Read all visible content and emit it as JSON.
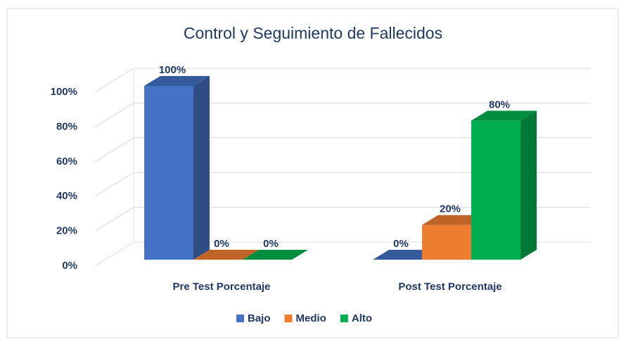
{
  "chart_data": {
    "type": "bar3d",
    "title": "Control y Seguimiento de Fallecidos",
    "categories": [
      "Pre Test Porcentaje",
      "Post Test Porcentaje"
    ],
    "series": [
      {
        "name": "Bajo",
        "color": "#4472c4",
        "values": [
          100,
          0
        ],
        "value_labels": [
          "100%",
          "0%"
        ]
      },
      {
        "name": "Medio",
        "color": "#ed7d31",
        "values": [
          0,
          20
        ],
        "value_labels": [
          "0%",
          "20%"
        ]
      },
      {
        "name": "Alto",
        "color": "#00b050",
        "values": [
          0,
          80
        ],
        "value_labels": [
          "0%",
          "80%"
        ]
      }
    ],
    "ylim": [
      0,
      100
    ],
    "yticks": [
      {
        "value": 0,
        "label": "0%"
      },
      {
        "value": 20,
        "label": "20%"
      },
      {
        "value": 40,
        "label": "40%"
      },
      {
        "value": 60,
        "label": "60%"
      },
      {
        "value": 80,
        "label": "80%"
      },
      {
        "value": 100,
        "label": "100%"
      }
    ],
    "grid": true,
    "legend": "bottom"
  }
}
